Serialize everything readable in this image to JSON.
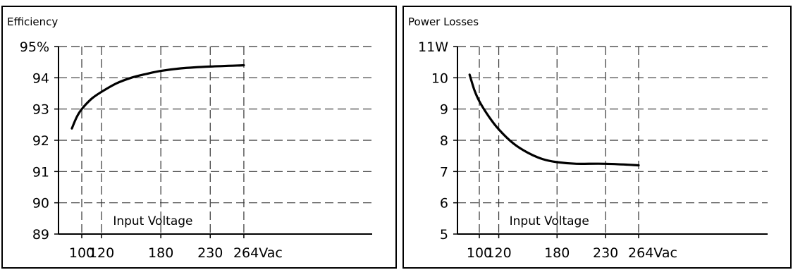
{
  "chart_data": [
    {
      "type": "line",
      "title": "Efficiency",
      "xlabel": "Input Voltage",
      "ylabel": "",
      "x_ticks": [
        100,
        120,
        180,
        230,
        264
      ],
      "x_tick_labels": [
        "100",
        "120",
        "180",
        "230",
        "264Vac"
      ],
      "y_ticks": [
        89,
        90,
        91,
        92,
        93,
        94,
        95
      ],
      "y_tick_labels": [
        "89",
        "90",
        "91",
        "92",
        "93",
        "94",
        "95%"
      ],
      "xlim": [
        90,
        264
      ],
      "ylim": [
        89,
        95
      ],
      "grid": true,
      "grid_style": "dashed",
      "line_color": "#000000",
      "series": [
        {
          "x": [
            90,
            95,
            100,
            110,
            120,
            135,
            150,
            165,
            180,
            200,
            230,
            264
          ],
          "y": [
            92.38,
            92.75,
            93.0,
            93.33,
            93.55,
            93.82,
            94.0,
            94.12,
            94.22,
            94.3,
            94.36,
            94.4
          ]
        }
      ]
    },
    {
      "type": "line",
      "title": "Power Losses",
      "xlabel": "Input Voltage",
      "ylabel": "",
      "x_ticks": [
        100,
        120,
        180,
        230,
        264
      ],
      "x_tick_labels": [
        "100",
        "120",
        "180",
        "230",
        "264Vac"
      ],
      "y_ticks": [
        5,
        6,
        7,
        8,
        9,
        10,
        11
      ],
      "y_tick_labels": [
        "5",
        "6",
        "7",
        "8",
        "9",
        "10",
        "11W"
      ],
      "xlim": [
        90,
        264
      ],
      "ylim": [
        5,
        11
      ],
      "grid": true,
      "grid_style": "dashed",
      "line_color": "#000000",
      "series": [
        {
          "x": [
            90,
            95,
            100,
            110,
            120,
            135,
            150,
            165,
            180,
            200,
            230,
            264
          ],
          "y": [
            10.1,
            9.6,
            9.25,
            8.75,
            8.35,
            7.9,
            7.6,
            7.4,
            7.3,
            7.25,
            7.25,
            7.2
          ]
        }
      ]
    }
  ]
}
